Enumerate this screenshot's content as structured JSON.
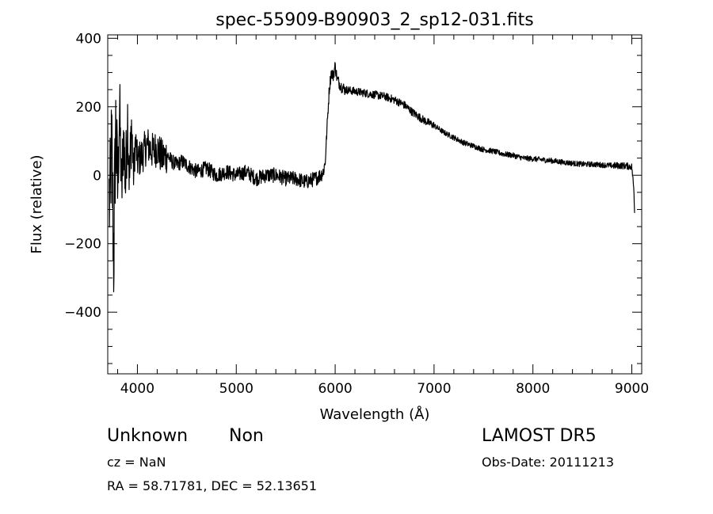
{
  "chart_data": {
    "type": "line",
    "title": "spec-55909-B90903_2_sp12-031.fits",
    "xlabel": "Wavelength (Å)",
    "ylabel": "Flux (relative)",
    "xlim": [
      3700,
      9100
    ],
    "ylim": [
      -580,
      410
    ],
    "xticks": [
      4000,
      5000,
      6000,
      7000,
      8000,
      9000
    ],
    "xtick_labels": [
      "4000",
      "5000",
      "6000",
      "7000",
      "8000",
      "9000"
    ],
    "yticks": [
      -400,
      -200,
      0,
      200,
      400
    ],
    "ytick_labels": [
      "−400",
      "−200",
      "0",
      "200",
      "400"
    ],
    "grid": false,
    "series": [
      {
        "x": [
          3700,
          3720,
          3740,
          3760,
          3780,
          3800,
          3820,
          3840,
          3860,
          3880,
          3900,
          3920,
          3940,
          3960,
          3980,
          4000,
          4050,
          4100,
          4150,
          4200,
          4250,
          4300,
          4350,
          4400,
          4450,
          4500,
          4600,
          4700,
          4800,
          4900,
          5000,
          5100,
          5200,
          5300,
          5400,
          5500,
          5600,
          5700,
          5800,
          5850,
          5880,
          5900,
          5920,
          5940,
          5960,
          5980,
          6000,
          6020,
          6040,
          6060,
          6100,
          6200,
          6300,
          6400,
          6500,
          6600,
          6700,
          6800,
          6900,
          7000,
          7100,
          7200,
          7300,
          7400,
          7500,
          7600,
          7700,
          7800,
          7900,
          8000,
          8100,
          8200,
          8300,
          8400,
          8500,
          8600,
          8700,
          8800,
          8900,
          8950,
          9000,
          9020,
          9040
        ],
        "y": [
          50,
          -100,
          100,
          -250,
          150,
          -50,
          200,
          -60,
          120,
          -30,
          180,
          -20,
          150,
          0,
          100,
          40,
          60,
          90,
          70,
          80,
          50,
          60,
          40,
          30,
          40,
          30,
          10,
          20,
          0,
          10,
          0,
          10,
          -10,
          0,
          0,
          -10,
          -10,
          -20,
          -10,
          0,
          10,
          40,
          150,
          250,
          300,
          290,
          320,
          280,
          270,
          260,
          250,
          245,
          240,
          235,
          230,
          220,
          205,
          180,
          160,
          145,
          125,
          110,
          95,
          85,
          75,
          70,
          62,
          58,
          50,
          48,
          45,
          42,
          38,
          35,
          32,
          32,
          30,
          28,
          28,
          27,
          25,
          -40,
          -200
        ]
      }
    ]
  },
  "footer": {
    "object_class": "Unknown",
    "object_subclass": "Non",
    "survey": "LAMOST DR5",
    "cz": "cz = NaN",
    "obs_date": "Obs-Date: 20111213",
    "coords": "RA =  58.71781, DEC =  52.13651"
  }
}
